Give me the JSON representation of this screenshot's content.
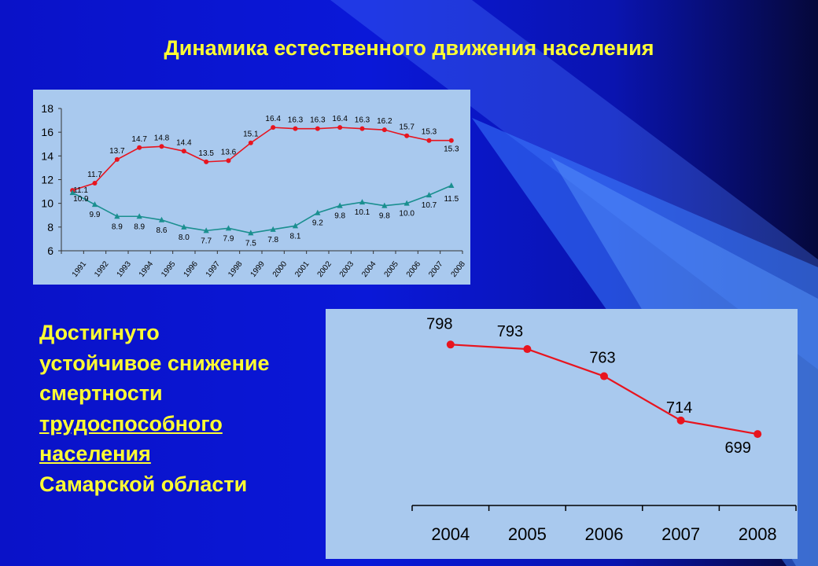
{
  "title": "Динамика естественного движения населения",
  "caption": [
    {
      "text": "Достигнуто",
      "underline": false
    },
    {
      "text": "устойчивое снижение",
      "underline": false
    },
    {
      "text": "смертности",
      "underline": false
    },
    {
      "text": "трудоспособного",
      "underline": true
    },
    {
      "text": "населения",
      "underline": true
    },
    {
      "text": "Самарской области",
      "underline": false
    }
  ],
  "colors": {
    "mortality": "#e8141e",
    "birth": "#1a8f8f",
    "caption": "#ffff33"
  },
  "chart_data": [
    {
      "type": "line",
      "categories": [
        "1991",
        "1992",
        "1993",
        "1994",
        "1995",
        "1996",
        "1997",
        "1998",
        "1999",
        "2000",
        "2001",
        "2002",
        "2003",
        "2004",
        "2005",
        "2006",
        "2007",
        "2008"
      ],
      "ylim": [
        6,
        18
      ],
      "yticks": [
        6,
        8,
        10,
        12,
        14,
        16,
        18
      ],
      "series": [
        {
          "color": "#e8141e",
          "marker": "circle",
          "values": [
            11.1,
            11.7,
            13.7,
            14.7,
            14.8,
            14.4,
            13.5,
            13.6,
            15.1,
            16.4,
            16.3,
            16.3,
            16.4,
            16.3,
            16.2,
            15.7,
            15.3,
            15.3
          ]
        },
        {
          "color": "#1a8f8f",
          "marker": "triangle",
          "values": [
            10.9,
            9.9,
            8.9,
            8.9,
            8.6,
            8.0,
            7.7,
            7.9,
            7.5,
            7.8,
            8.1,
            9.2,
            9.8,
            10.1,
            9.8,
            10.0,
            10.7,
            11.5
          ]
        }
      ]
    },
    {
      "type": "line",
      "categories": [
        "2004",
        "2005",
        "2006",
        "2007",
        "2008"
      ],
      "series": [
        {
          "color": "#e8141e",
          "marker": "circle",
          "values": [
            798,
            793,
            763,
            714,
            699
          ]
        }
      ]
    }
  ]
}
